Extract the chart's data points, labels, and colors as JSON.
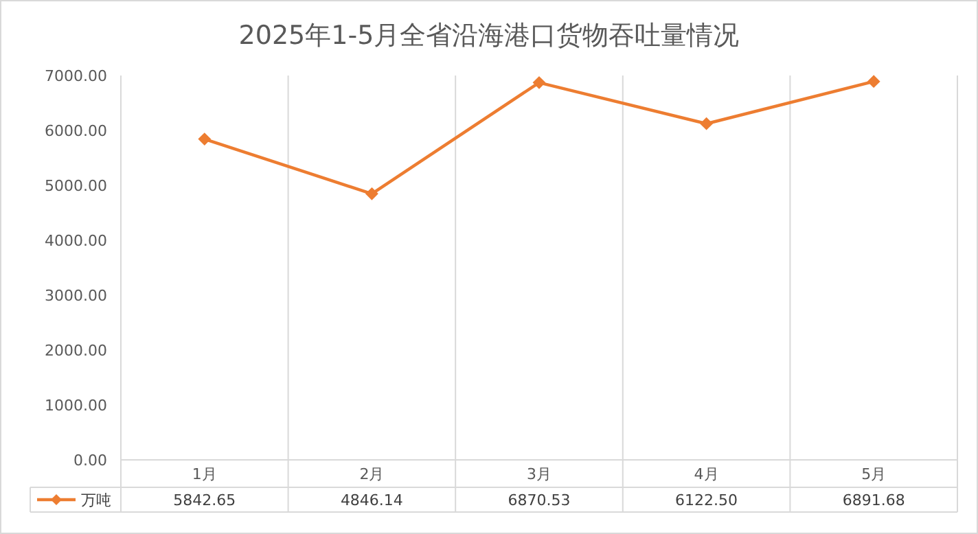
{
  "chart_data": {
    "type": "line",
    "title": "2025年1-5月全省沿海港口货物吞吐量情况",
    "categories": [
      "1月",
      "2月",
      "3月",
      "4月",
      "5月"
    ],
    "series": [
      {
        "name": "万吨",
        "color": "#ed7d31",
        "values": [
          5842.65,
          4846.14,
          6870.53,
          6122.5,
          6891.68
        ]
      }
    ],
    "ylim": [
      0,
      7000
    ],
    "yticks": [
      {
        "value": 0,
        "label": "0.00"
      },
      {
        "value": 1000,
        "label": "1000.00"
      },
      {
        "value": 2000,
        "label": "2000.00"
      },
      {
        "value": 3000,
        "label": "3000.00"
      },
      {
        "value": 4000,
        "label": "4000.00"
      },
      {
        "value": 5000,
        "label": "5000.00"
      },
      {
        "value": 6000,
        "label": "6000.00"
      },
      {
        "value": 7000,
        "label": "7000.00"
      }
    ],
    "value_labels": [
      "5842.65",
      "4846.14",
      "6870.53",
      "6122.50",
      "6891.68"
    ],
    "grid": "x",
    "legend": "bottom",
    "marker": "diamond",
    "line_style": "solid"
  }
}
